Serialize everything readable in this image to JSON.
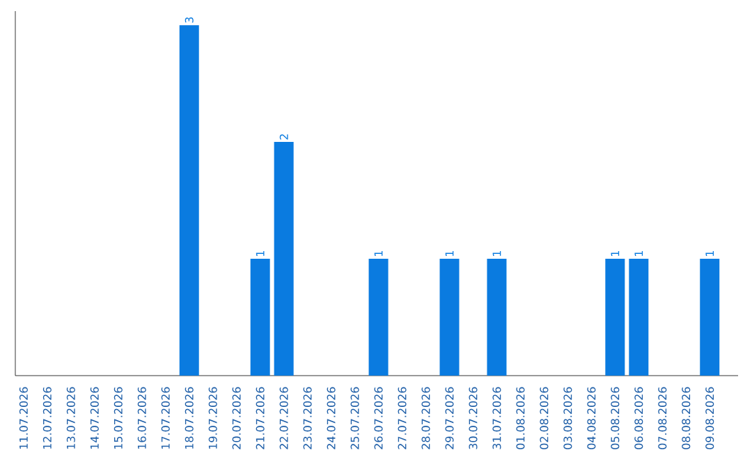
{
  "chart_data": {
    "type": "bar",
    "color": "#0a7be0",
    "categories": [
      "11.07.2026",
      "12.07.2026",
      "13.07.2026",
      "14.07.2026",
      "15.07.2026",
      "16.07.2026",
      "17.07.2026",
      "18.07.2026",
      "19.07.2026",
      "20.07.2026",
      "21.07.2026",
      "22.07.2026",
      "23.07.2026",
      "24.07.2026",
      "25.07.2026",
      "26.07.2026",
      "27.07.2026",
      "28.07.2026",
      "29.07.2026",
      "30.07.2026",
      "31.07.2026",
      "01.08.2026",
      "02.08.2026",
      "03.08.2026",
      "04.08.2026",
      "05.08.2026",
      "06.08.2026",
      "07.08.2026",
      "08.08.2026",
      "09.08.2026"
    ],
    "values": [
      0,
      0,
      0,
      0,
      0,
      0,
      0,
      3,
      0,
      0,
      1,
      2,
      0,
      0,
      0,
      1,
      0,
      0,
      1,
      0,
      1,
      0,
      0,
      0,
      0,
      1,
      1,
      0,
      0,
      1
    ],
    "value_labels": [
      null,
      null,
      null,
      null,
      null,
      null,
      null,
      "3",
      null,
      null,
      "1",
      "2",
      null,
      null,
      null,
      "1",
      null,
      null,
      "1",
      null,
      "1",
      null,
      null,
      null,
      null,
      "1",
      "1",
      null,
      null,
      "1"
    ],
    "ylim": [
      0,
      3.12
    ],
    "tick_labels": "x",
    "grid": false
  }
}
